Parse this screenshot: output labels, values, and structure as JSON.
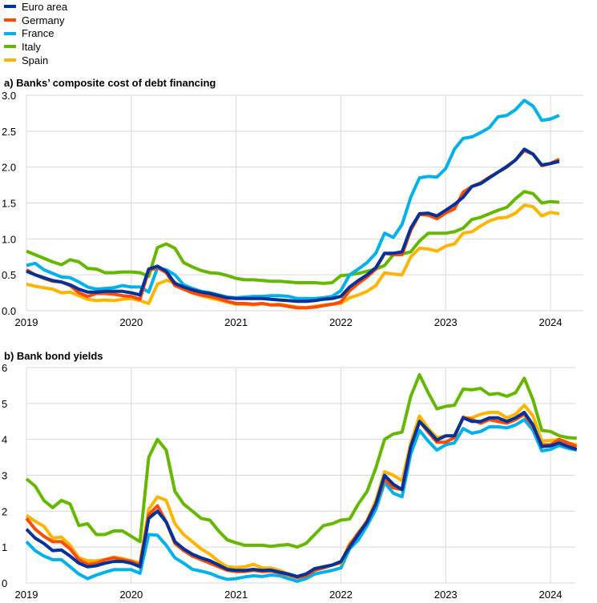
{
  "legend": [
    {
      "name": "Euro area",
      "color": "#003299"
    },
    {
      "name": "Germany",
      "color": "#ff4b00"
    },
    {
      "name": "France",
      "color": "#00b1ea"
    },
    {
      "name": "Italy",
      "color": "#65b800"
    },
    {
      "name": "Spain",
      "color": "#ffb400"
    }
  ],
  "chart_data": [
    {
      "type": "line",
      "title": "a) Banks’ composite cost of debt financing",
      "x_start": "2019-01",
      "frequency": "monthly",
      "xticks": [
        "2019",
        "2020",
        "2021",
        "2022",
        "2023",
        "2024"
      ],
      "ylim": [
        0,
        3.0
      ],
      "yticks": [
        "0.0",
        "0.5",
        "1.0",
        "1.5",
        "2.0",
        "2.5",
        "3.0"
      ],
      "ystep": 0.5,
      "grid": true,
      "series": [
        {
          "name": "Italy",
          "values": [
            0.83,
            0.78,
            0.73,
            0.68,
            0.64,
            0.71,
            0.68,
            0.59,
            0.58,
            0.53,
            0.53,
            0.54,
            0.54,
            0.53,
            0.48,
            0.88,
            0.93,
            0.87,
            0.67,
            0.61,
            0.56,
            0.53,
            0.52,
            0.49,
            0.45,
            0.43,
            0.43,
            0.42,
            0.41,
            0.41,
            0.4,
            0.39,
            0.39,
            0.39,
            0.38,
            0.39,
            0.49,
            0.5,
            0.52,
            0.55,
            0.58,
            0.63,
            0.78,
            0.79,
            0.82,
            0.97,
            1.08,
            1.08,
            1.08,
            1.1,
            1.15,
            1.27,
            1.3,
            1.35,
            1.4,
            1.44,
            1.56,
            1.66,
            1.63,
            1.5,
            1.52,
            1.51
          ]
        },
        {
          "name": "France",
          "values": [
            0.63,
            0.66,
            0.57,
            0.52,
            0.47,
            0.46,
            0.4,
            0.33,
            0.3,
            0.31,
            0.32,
            0.35,
            0.33,
            0.33,
            0.26,
            0.6,
            0.57,
            0.5,
            0.36,
            0.31,
            0.27,
            0.25,
            0.22,
            0.19,
            0.18,
            0.19,
            0.2,
            0.2,
            0.21,
            0.21,
            0.2,
            0.17,
            0.17,
            0.17,
            0.18,
            0.2,
            0.28,
            0.5,
            0.58,
            0.67,
            0.8,
            1.08,
            1.02,
            1.2,
            1.58,
            1.85,
            1.87,
            1.86,
            1.98,
            2.25,
            2.4,
            2.42,
            2.48,
            2.55,
            2.7,
            2.72,
            2.8,
            2.93,
            2.85,
            2.65,
            2.67,
            2.72
          ]
        },
        {
          "name": "Spain",
          "values": [
            0.37,
            0.34,
            0.32,
            0.3,
            0.25,
            0.26,
            0.21,
            0.16,
            0.14,
            0.15,
            0.14,
            0.16,
            0.17,
            0.14,
            0.1,
            0.37,
            0.42,
            0.4,
            0.3,
            0.25,
            0.21,
            0.18,
            0.15,
            0.12,
            0.09,
            0.09,
            0.08,
            0.1,
            0.08,
            0.09,
            0.07,
            0.05,
            0.04,
            0.06,
            0.08,
            0.09,
            0.1,
            0.18,
            0.22,
            0.27,
            0.35,
            0.53,
            0.51,
            0.5,
            0.75,
            0.87,
            0.86,
            0.83,
            0.9,
            0.93,
            1.08,
            1.1,
            1.18,
            1.25,
            1.29,
            1.3,
            1.36,
            1.47,
            1.45,
            1.32,
            1.37,
            1.35
          ]
        },
        {
          "name": "Germany",
          "values": [
            0.57,
            0.5,
            0.45,
            0.41,
            0.4,
            0.35,
            0.25,
            0.2,
            0.24,
            0.24,
            0.23,
            0.21,
            0.2,
            0.16,
            0.56,
            0.6,
            0.53,
            0.35,
            0.3,
            0.25,
            0.22,
            0.2,
            0.17,
            0.13,
            0.1,
            0.1,
            0.09,
            0.1,
            0.08,
            0.08,
            0.06,
            0.04,
            0.04,
            0.05,
            0.07,
            0.09,
            0.12,
            0.28,
            0.38,
            0.47,
            0.58,
            0.8,
            0.78,
            0.78,
            1.12,
            1.34,
            1.33,
            1.28,
            1.36,
            1.42,
            1.65,
            1.73,
            1.78,
            1.86,
            1.93,
            2.0,
            2.1,
            2.23,
            2.18,
            2.02,
            2.05,
            2.11
          ]
        },
        {
          "name": "Euro area",
          "values": [
            0.55,
            0.5,
            0.46,
            0.42,
            0.4,
            0.36,
            0.3,
            0.26,
            0.26,
            0.27,
            0.27,
            0.27,
            0.25,
            0.22,
            0.58,
            0.62,
            0.55,
            0.38,
            0.33,
            0.29,
            0.26,
            0.24,
            0.21,
            0.18,
            0.17,
            0.17,
            0.17,
            0.17,
            0.16,
            0.15,
            0.14,
            0.13,
            0.13,
            0.14,
            0.16,
            0.17,
            0.2,
            0.33,
            0.42,
            0.5,
            0.6,
            0.8,
            0.8,
            0.82,
            1.15,
            1.35,
            1.36,
            1.32,
            1.4,
            1.48,
            1.58,
            1.73,
            1.77,
            1.85,
            1.93,
            2.01,
            2.1,
            2.25,
            2.18,
            2.03,
            2.05,
            2.08
          ]
        }
      ]
    },
    {
      "type": "line",
      "title": "b) Bank bond yields",
      "x_start": "2019-01",
      "frequency": "monthly",
      "xticks": [
        "2019",
        "2020",
        "2021",
        "2022",
        "2023",
        "2024"
      ],
      "ylim": [
        0,
        6
      ],
      "yticks": [
        "0",
        "1",
        "2",
        "3",
        "4",
        "5",
        "6"
      ],
      "ystep": 1,
      "grid": true,
      "series": [
        {
          "name": "Italy",
          "values": [
            2.9,
            2.7,
            2.3,
            2.1,
            2.3,
            2.2,
            1.6,
            1.65,
            1.35,
            1.35,
            1.45,
            1.45,
            1.3,
            1.15,
            3.5,
            4.0,
            3.7,
            2.55,
            2.2,
            2.0,
            1.8,
            1.75,
            1.45,
            1.2,
            1.12,
            1.05,
            1.05,
            1.05,
            1.02,
            1.05,
            1.07,
            1.0,
            1.1,
            1.35,
            1.6,
            1.65,
            1.75,
            1.78,
            2.2,
            2.55,
            3.2,
            4.0,
            4.15,
            4.2,
            5.2,
            5.8,
            5.3,
            4.85,
            4.92,
            4.95,
            5.4,
            5.38,
            5.42,
            5.25,
            5.28,
            5.2,
            5.3,
            5.7,
            5.1,
            4.25,
            4.22,
            4.1,
            4.05,
            4.03
          ]
        },
        {
          "name": "France",
          "values": [
            1.15,
            0.9,
            0.75,
            0.65,
            0.65,
            0.45,
            0.25,
            0.12,
            0.22,
            0.3,
            0.37,
            0.37,
            0.37,
            0.27,
            1.35,
            1.33,
            1.05,
            0.7,
            0.55,
            0.38,
            0.33,
            0.27,
            0.17,
            0.1,
            0.12,
            0.17,
            0.2,
            0.18,
            0.22,
            0.2,
            0.12,
            0.05,
            0.12,
            0.25,
            0.3,
            0.35,
            0.42,
            0.95,
            1.2,
            1.6,
            2.05,
            2.8,
            2.5,
            2.4,
            3.6,
            4.25,
            3.95,
            3.7,
            3.85,
            3.9,
            4.3,
            4.17,
            4.22,
            4.35,
            4.35,
            4.32,
            4.4,
            4.55,
            4.25,
            3.68,
            3.72,
            3.83,
            3.75,
            3.7
          ]
        },
        {
          "name": "Spain",
          "values": [
            1.88,
            1.72,
            1.58,
            1.25,
            1.28,
            1.05,
            0.7,
            0.62,
            0.62,
            0.65,
            0.72,
            0.68,
            0.62,
            0.55,
            2.05,
            2.4,
            2.3,
            1.65,
            1.35,
            1.15,
            0.95,
            0.8,
            0.6,
            0.45,
            0.43,
            0.45,
            0.52,
            0.42,
            0.42,
            0.35,
            0.25,
            0.15,
            0.25,
            0.4,
            0.45,
            0.5,
            0.55,
            1.1,
            1.35,
            1.75,
            2.3,
            3.1,
            3.0,
            2.85,
            3.9,
            4.65,
            4.3,
            4.05,
            4.1,
            4.1,
            4.6,
            4.6,
            4.7,
            4.75,
            4.75,
            4.6,
            4.7,
            4.95,
            4.65,
            3.95,
            3.97,
            4.0,
            3.9,
            3.85
          ]
        },
        {
          "name": "Germany",
          "values": [
            1.8,
            1.5,
            1.3,
            1.15,
            1.15,
            0.95,
            0.65,
            0.52,
            0.55,
            0.65,
            0.7,
            0.65,
            0.6,
            0.5,
            1.9,
            2.15,
            1.7,
            1.1,
            0.9,
            0.75,
            0.65,
            0.55,
            0.45,
            0.35,
            0.32,
            0.32,
            0.35,
            0.32,
            0.33,
            0.28,
            0.22,
            0.15,
            0.2,
            0.35,
            0.42,
            0.5,
            0.58,
            1.05,
            1.4,
            1.72,
            2.2,
            2.9,
            2.65,
            2.6,
            3.8,
            4.5,
            4.2,
            3.92,
            3.92,
            4.05,
            4.62,
            4.55,
            4.45,
            4.55,
            4.5,
            4.45,
            4.55,
            4.7,
            4.35,
            3.85,
            3.85,
            4.0,
            3.9,
            3.8
          ]
        },
        {
          "name": "Euro area",
          "values": [
            1.5,
            1.25,
            1.1,
            0.9,
            0.92,
            0.75,
            0.55,
            0.45,
            0.48,
            0.55,
            0.6,
            0.6,
            0.55,
            0.45,
            1.8,
            2.0,
            1.7,
            1.15,
            0.95,
            0.8,
            0.7,
            0.62,
            0.5,
            0.38,
            0.35,
            0.35,
            0.38,
            0.35,
            0.36,
            0.3,
            0.25,
            0.18,
            0.25,
            0.4,
            0.45,
            0.5,
            0.6,
            1.0,
            1.35,
            1.7,
            2.2,
            3.0,
            2.75,
            2.6,
            3.8,
            4.5,
            4.25,
            3.98,
            4.1,
            4.1,
            4.6,
            4.5,
            4.5,
            4.6,
            4.6,
            4.5,
            4.6,
            4.75,
            4.4,
            3.8,
            3.82,
            3.9,
            3.8,
            3.72
          ]
        }
      ]
    }
  ]
}
